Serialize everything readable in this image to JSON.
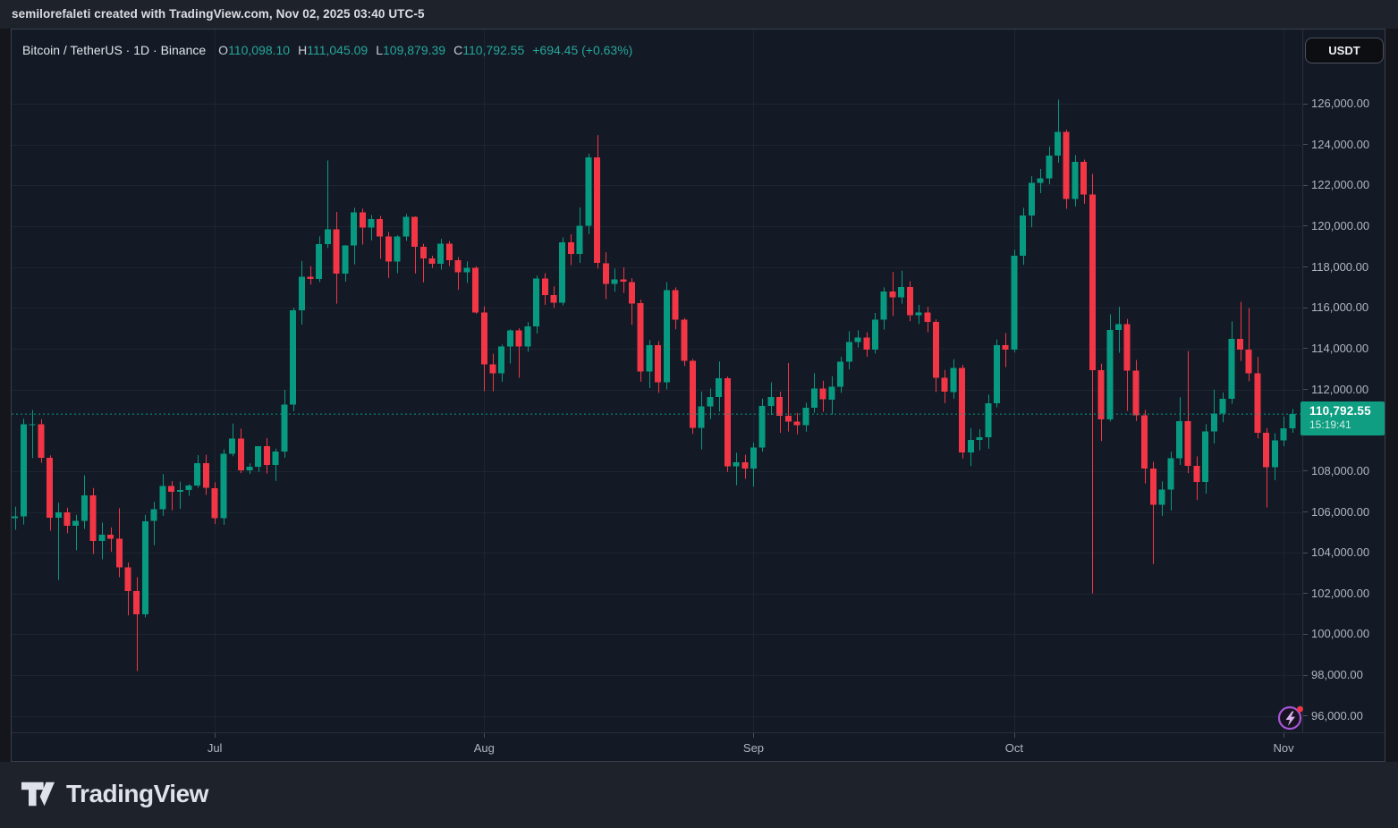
{
  "attribution": "semilorefaleti created with TradingView.com, Nov 02, 2025 03:40 UTC-5",
  "header": {
    "symbol_title": "Bitcoin / TetherUS · 1D · Binance",
    "ohlc": {
      "o_label": "O",
      "o": "110,098.10",
      "h_label": "H",
      "h": "111,045.09",
      "l_label": "L",
      "l": "109,879.39",
      "c_label": "C",
      "c": "110,792.55",
      "change": "+694.45 (+0.63%)"
    },
    "currency_button": "USDT"
  },
  "last_price": {
    "price_text": "110,792.55",
    "countdown": "15:19:41",
    "value": 110792.55
  },
  "price_scale": {
    "ticks": [
      {
        "label": "126,000.00",
        "value": 126000
      },
      {
        "label": "124,000.00",
        "value": 124000
      },
      {
        "label": "122,000.00",
        "value": 122000
      },
      {
        "label": "120,000.00",
        "value": 120000
      },
      {
        "label": "118,000.00",
        "value": 118000
      },
      {
        "label": "116,000.00",
        "value": 116000
      },
      {
        "label": "114,000.00",
        "value": 114000
      },
      {
        "label": "112,000.00",
        "value": 112000
      },
      {
        "label": "108,000.00",
        "value": 108000
      },
      {
        "label": "106,000.00",
        "value": 106000
      },
      {
        "label": "104,000.00",
        "value": 104000
      },
      {
        "label": "102,000.00",
        "value": 102000
      },
      {
        "label": "100,000.00",
        "value": 100000
      },
      {
        "label": "98,000.00",
        "value": 98000
      },
      {
        "label": "96,000.00",
        "value": 96000
      }
    ]
  },
  "time_scale": {
    "ticks": [
      {
        "label": "Jul",
        "index": 23
      },
      {
        "label": "Aug",
        "index": 54
      },
      {
        "label": "Sep",
        "index": 85
      },
      {
        "label": "Oct",
        "index": 115
      },
      {
        "label": "Nov",
        "index": 146
      }
    ]
  },
  "footer": {
    "logo_text": "TradingView"
  },
  "colors": {
    "up": "#089981",
    "down": "#f23645",
    "grid": "#1e2430",
    "accent_text": "#26a69a",
    "label_bg": "#0f9e82"
  },
  "chart_data": {
    "type": "candlestick",
    "symbol": "BTCUSDT",
    "exchange": "Binance",
    "interval": "1D",
    "title": "Bitcoin / TetherUS · 1D · Binance",
    "visible_price_range": [
      96000,
      126000
    ],
    "last": {
      "open": 110098.1,
      "high": 111045.09,
      "low": 109879.39,
      "close": 110792.55,
      "change": 694.45,
      "change_pct": 0.63
    },
    "candles": [
      [
        "2025-06-08",
        105690,
        106260,
        105120,
        105790
      ],
      [
        "2025-06-09",
        105790,
        110570,
        105380,
        110290
      ],
      [
        "2025-06-10",
        110290,
        110990,
        108640,
        110300
      ],
      [
        "2025-06-11",
        110300,
        110540,
        108410,
        108650
      ],
      [
        "2025-06-12",
        108650,
        108770,
        105080,
        105720
      ],
      [
        "2025-06-13",
        105720,
        106450,
        102660,
        105970
      ],
      [
        "2025-06-14",
        105970,
        106200,
        104960,
        105330
      ],
      [
        "2025-06-15",
        105330,
        105850,
        104120,
        105570
      ],
      [
        "2025-06-16",
        105570,
        107790,
        105160,
        106800
      ],
      [
        "2025-06-17",
        106800,
        107170,
        103940,
        104580
      ],
      [
        "2025-06-18",
        104580,
        105480,
        103680,
        104880
      ],
      [
        "2025-06-19",
        104880,
        105240,
        104050,
        104690
      ],
      [
        "2025-06-20",
        104690,
        106180,
        102800,
        103290
      ],
      [
        "2025-06-21",
        103290,
        103520,
        100930,
        102120
      ],
      [
        "2025-06-22",
        102120,
        102800,
        98200,
        100990
      ],
      [
        "2025-06-23",
        100990,
        105850,
        100830,
        105550
      ],
      [
        "2025-06-24",
        105550,
        106500,
        104370,
        106130
      ],
      [
        "2025-06-25",
        106130,
        107850,
        105810,
        107260
      ],
      [
        "2025-06-26",
        107260,
        107510,
        106080,
        106980
      ],
      [
        "2025-06-27",
        106980,
        107480,
        106150,
        107080
      ],
      [
        "2025-06-28",
        107080,
        107360,
        106790,
        107300
      ],
      [
        "2025-06-29",
        107300,
        108790,
        107190,
        108390
      ],
      [
        "2025-06-30",
        108390,
        108800,
        106830,
        107170
      ],
      [
        "2025-07-01",
        107170,
        107450,
        105410,
        105700
      ],
      [
        "2025-07-02",
        105700,
        109060,
        105370,
        108850
      ],
      [
        "2025-07-03",
        108850,
        110330,
        108730,
        109600
      ],
      [
        "2025-07-04",
        109600,
        110080,
        107900,
        108040
      ],
      [
        "2025-07-05",
        108040,
        108380,
        107860,
        108220
      ],
      [
        "2025-07-06",
        108220,
        109220,
        107960,
        109210
      ],
      [
        "2025-07-07",
        109210,
        109620,
        107880,
        108300
      ],
      [
        "2025-07-08",
        108300,
        109100,
        107520,
        108950
      ],
      [
        "2025-07-09",
        108950,
        111980,
        108650,
        111250
      ],
      [
        "2025-07-10",
        111250,
        116000,
        110940,
        115880
      ],
      [
        "2025-07-11",
        115880,
        118290,
        115180,
        117520
      ],
      [
        "2025-07-12",
        117520,
        118040,
        117140,
        117420
      ],
      [
        "2025-07-13",
        117420,
        119500,
        117260,
        119120
      ],
      [
        "2025-07-14",
        119120,
        123220,
        118930,
        119850
      ],
      [
        "2025-07-15",
        119850,
        120700,
        116200,
        117680
      ],
      [
        "2025-07-16",
        117680,
        119070,
        117280,
        119060
      ],
      [
        "2025-07-17",
        119060,
        120900,
        118130,
        120670
      ],
      [
        "2025-07-18",
        120670,
        120860,
        119100,
        119940
      ],
      [
        "2025-07-19",
        119940,
        120550,
        119300,
        120350
      ],
      [
        "2025-07-20",
        120350,
        120500,
        118400,
        119500
      ],
      [
        "2025-07-21",
        119500,
        119720,
        117460,
        118260
      ],
      [
        "2025-07-22",
        118260,
        119550,
        117700,
        119500
      ],
      [
        "2025-07-23",
        119500,
        120600,
        119280,
        120450
      ],
      [
        "2025-07-24",
        120450,
        120480,
        117680,
        118990
      ],
      [
        "2025-07-25",
        118990,
        119140,
        117250,
        118410
      ],
      [
        "2025-07-26",
        118410,
        118550,
        117950,
        118150
      ],
      [
        "2025-07-27",
        118150,
        119380,
        117870,
        119140
      ],
      [
        "2025-07-28",
        119140,
        119270,
        118050,
        118330
      ],
      [
        "2025-07-29",
        118330,
        118480,
        116880,
        117750
      ],
      [
        "2025-07-30",
        117750,
        118280,
        117220,
        117950
      ],
      [
        "2025-07-31",
        117950,
        118030,
        115710,
        115770
      ],
      [
        "2025-08-01",
        115770,
        116070,
        111920,
        113230
      ],
      [
        "2025-08-02",
        113230,
        113750,
        111910,
        112790
      ],
      [
        "2025-08-03",
        112790,
        114200,
        112380,
        114100
      ],
      [
        "2025-08-04",
        114100,
        114950,
        113270,
        114900
      ],
      [
        "2025-08-05",
        114900,
        115000,
        112570,
        114100
      ],
      [
        "2025-08-06",
        114100,
        115300,
        113850,
        115100
      ],
      [
        "2025-08-07",
        115100,
        117580,
        114740,
        117430
      ],
      [
        "2025-08-08",
        117430,
        117700,
        116150,
        116620
      ],
      [
        "2025-08-09",
        116620,
        117050,
        116000,
        116250
      ],
      [
        "2025-08-10",
        116250,
        119450,
        116120,
        119210
      ],
      [
        "2025-08-11",
        119210,
        119600,
        118100,
        118630
      ],
      [
        "2025-08-12",
        118630,
        120920,
        118200,
        120010
      ],
      [
        "2025-08-13",
        120010,
        123550,
        119610,
        123370
      ],
      [
        "2025-08-14",
        123370,
        124460,
        117930,
        118190
      ],
      [
        "2025-08-15",
        118190,
        118720,
        116420,
        117170
      ],
      [
        "2025-08-16",
        117170,
        117920,
        116790,
        117390
      ],
      [
        "2025-08-17",
        117390,
        117980,
        116730,
        117270
      ],
      [
        "2025-08-18",
        117270,
        117450,
        115170,
        116220
      ],
      [
        "2025-08-19",
        116220,
        116400,
        112380,
        112870
      ],
      [
        "2025-08-20",
        112870,
        114420,
        112070,
        114180
      ],
      [
        "2025-08-21",
        114180,
        114370,
        111830,
        112360
      ],
      [
        "2025-08-22",
        112360,
        117260,
        112000,
        116870
      ],
      [
        "2025-08-23",
        116870,
        117000,
        114950,
        115420
      ],
      [
        "2025-08-24",
        115420,
        115500,
        113150,
        113410
      ],
      [
        "2025-08-25",
        113410,
        113500,
        109820,
        110120
      ],
      [
        "2025-08-26",
        110120,
        111900,
        109060,
        111180
      ],
      [
        "2025-08-27",
        111180,
        112050,
        110550,
        111630
      ],
      [
        "2025-08-28",
        111630,
        113370,
        110920,
        112550
      ],
      [
        "2025-08-29",
        112550,
        112640,
        107960,
        108240
      ],
      [
        "2025-08-30",
        108240,
        108900,
        107310,
        108440
      ],
      [
        "2025-08-31",
        108440,
        108800,
        107620,
        108120
      ],
      [
        "2025-09-01",
        108120,
        109400,
        107240,
        109150
      ],
      [
        "2025-09-02",
        109150,
        111550,
        108950,
        111200
      ],
      [
        "2025-09-03",
        111200,
        112350,
        110750,
        111640
      ],
      [
        "2025-09-04",
        111640,
        111900,
        109870,
        110720
      ],
      [
        "2025-09-05",
        110720,
        113300,
        109940,
        110420
      ],
      [
        "2025-09-06",
        110420,
        110850,
        109800,
        110250
      ],
      [
        "2025-09-07",
        110250,
        111350,
        109930,
        111110
      ],
      [
        "2025-09-08",
        111110,
        112800,
        110860,
        112050
      ],
      [
        "2025-09-09",
        112050,
        112430,
        110900,
        111510
      ],
      [
        "2025-09-10",
        111510,
        112650,
        110770,
        112140
      ],
      [
        "2025-09-11",
        112140,
        113600,
        111830,
        113370
      ],
      [
        "2025-09-12",
        113370,
        114850,
        112990,
        114320
      ],
      [
        "2025-09-13",
        114320,
        114900,
        114050,
        114540
      ],
      [
        "2025-09-14",
        114540,
        114800,
        113600,
        113960
      ],
      [
        "2025-09-15",
        113960,
        115750,
        113760,
        115420
      ],
      [
        "2025-09-16",
        115420,
        117000,
        114930,
        116800
      ],
      [
        "2025-09-17",
        116800,
        117750,
        115600,
        116510
      ],
      [
        "2025-09-18",
        116510,
        117820,
        116200,
        117020
      ],
      [
        "2025-09-19",
        117020,
        117300,
        115350,
        115650
      ],
      [
        "2025-09-20",
        115650,
        116150,
        115210,
        115780
      ],
      [
        "2025-09-21",
        115780,
        116050,
        114800,
        115310
      ],
      [
        "2025-09-22",
        115310,
        115430,
        111870,
        112570
      ],
      [
        "2025-09-23",
        112570,
        112950,
        111330,
        111880
      ],
      [
        "2025-09-24",
        111880,
        113480,
        111550,
        113060
      ],
      [
        "2025-09-25",
        113060,
        113200,
        108620,
        108920
      ],
      [
        "2025-09-26",
        108920,
        110100,
        108250,
        109530
      ],
      [
        "2025-09-27",
        109530,
        110050,
        109020,
        109660
      ],
      [
        "2025-09-28",
        109660,
        111750,
        109100,
        111330
      ],
      [
        "2025-09-29",
        111330,
        114450,
        111120,
        114170
      ],
      [
        "2025-09-30",
        114170,
        114760,
        113100,
        113950
      ],
      [
        "2025-10-01",
        113950,
        118850,
        113810,
        118550
      ],
      [
        "2025-10-02",
        118550,
        120900,
        118110,
        120530
      ],
      [
        "2025-10-03",
        120530,
        122450,
        119950,
        122130
      ],
      [
        "2025-10-04",
        122130,
        122800,
        121620,
        122350
      ],
      [
        "2025-10-05",
        122350,
        123900,
        122050,
        123450
      ],
      [
        "2025-10-06",
        123450,
        126200,
        123110,
        124620
      ],
      [
        "2025-10-07",
        124620,
        124730,
        120850,
        121330
      ],
      [
        "2025-10-08",
        121330,
        123480,
        120970,
        123150
      ],
      [
        "2025-10-09",
        123150,
        123260,
        121100,
        121550
      ],
      [
        "2025-10-10",
        121550,
        122560,
        102000,
        112950
      ],
      [
        "2025-10-11",
        112950,
        113260,
        109470,
        110530
      ],
      [
        "2025-10-12",
        110530,
        115680,
        110430,
        114910
      ],
      [
        "2025-10-13",
        114910,
        116050,
        113800,
        115210
      ],
      [
        "2025-10-14",
        115210,
        115450,
        110950,
        112930
      ],
      [
        "2025-10-15",
        112930,
        113440,
        110450,
        110740
      ],
      [
        "2025-10-16",
        110740,
        111000,
        107390,
        108120
      ],
      [
        "2025-10-17",
        108120,
        108460,
        103440,
        106360
      ],
      [
        "2025-10-18",
        106360,
        107500,
        105800,
        107090
      ],
      [
        "2025-10-19",
        107090,
        108950,
        106070,
        108630
      ],
      [
        "2025-10-20",
        108630,
        111620,
        108300,
        110450
      ],
      [
        "2025-10-21",
        110450,
        113880,
        107900,
        108260
      ],
      [
        "2025-10-22",
        108260,
        108720,
        106580,
        107460
      ],
      [
        "2025-10-23",
        107460,
        110300,
        106900,
        109940
      ],
      [
        "2025-10-24",
        109940,
        111990,
        109350,
        110820
      ],
      [
        "2025-10-25",
        110820,
        111850,
        110400,
        111550
      ],
      [
        "2025-10-26",
        111550,
        115340,
        111300,
        114470
      ],
      [
        "2025-10-27",
        114470,
        116290,
        113400,
        113960
      ],
      [
        "2025-10-28",
        113960,
        115990,
        112400,
        112790
      ],
      [
        "2025-10-29",
        112790,
        113590,
        109600,
        109870
      ],
      [
        "2025-10-30",
        109870,
        110100,
        106220,
        108200
      ],
      [
        "2025-10-31",
        108200,
        109850,
        107550,
        109500
      ],
      [
        "2025-11-01",
        109500,
        110670,
        109220,
        110100
      ],
      [
        "2025-11-02",
        110098.1,
        111045.09,
        109879.39,
        110792.55
      ]
    ]
  }
}
